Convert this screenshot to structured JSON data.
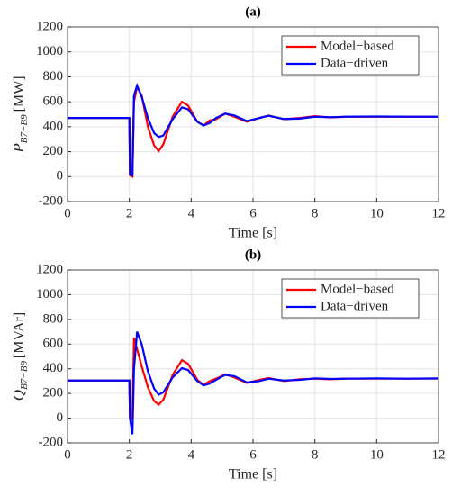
{
  "chart_data": [
    {
      "type": "line",
      "title": "(a)",
      "xlabel": "Time [s]",
      "ylabel": {
        "symbol": "P",
        "subscript": "B7−B9",
        "unit": "[MW]"
      },
      "x": [
        0,
        2,
        2.02,
        2.1,
        2.15,
        2.25,
        2.4,
        2.6,
        2.8,
        2.95,
        3.1,
        3.4,
        3.7,
        3.9,
        4.2,
        4.4,
        4.6,
        4.8,
        5.1,
        5.4,
        5.8,
        6.2,
        6.5,
        7,
        7.5,
        8,
        8.5,
        9,
        10,
        11,
        12
      ],
      "series": [
        {
          "name": "Model−based",
          "color": "#ff0000",
          "values": [
            470,
            470,
            10,
            0,
            600,
            720,
            650,
            400,
            250,
            205,
            260,
            480,
            600,
            570,
            440,
            410,
            450,
            460,
            505,
            480,
            440,
            470,
            490,
            460,
            470,
            485,
            475,
            480,
            480,
            480,
            480
          ]
        },
        {
          "name": "Data−driven",
          "color": "#0000ff",
          "values": [
            470,
            470,
            20,
            10,
            650,
            730,
            640,
            470,
            350,
            318,
            330,
            460,
            555,
            540,
            440,
            410,
            430,
            470,
            505,
            490,
            445,
            470,
            488,
            462,
            465,
            480,
            476,
            480,
            482,
            480,
            480
          ]
        }
      ],
      "xlim": [
        0,
        12
      ],
      "xticks": [
        0,
        2,
        4,
        6,
        8,
        10,
        12
      ],
      "ylim": [
        -200,
        1200
      ],
      "yticks": [
        -200,
        0,
        200,
        400,
        600,
        800,
        1000,
        1200
      ],
      "grid": true,
      "legend": "top-right"
    },
    {
      "type": "line",
      "title": "(b)",
      "xlabel": "Time [s]",
      "ylabel": {
        "symbol": "Q",
        "subscript": "B7−B9",
        "unit": "[MVAr]"
      },
      "x": [
        0,
        2,
        2.02,
        2.1,
        2.15,
        2.25,
        2.4,
        2.6,
        2.8,
        2.95,
        3.1,
        3.4,
        3.7,
        3.9,
        4.2,
        4.4,
        4.6,
        4.8,
        5.1,
        5.4,
        5.8,
        6.2,
        6.5,
        7,
        7.5,
        8,
        8.5,
        9,
        10,
        11,
        12
      ],
      "series": [
        {
          "name": "Model−based",
          "color": "#ff0000",
          "values": [
            305,
            305,
            0,
            -10,
            650,
            560,
            420,
            250,
            140,
            110,
            150,
            350,
            470,
            440,
            310,
            270,
            300,
            320,
            355,
            330,
            285,
            310,
            325,
            300,
            315,
            320,
            315,
            320,
            320,
            320,
            320
          ]
        },
        {
          "name": "Data−driven",
          "color": "#0000ff",
          "values": [
            305,
            305,
            0,
            -130,
            400,
            700,
            600,
            380,
            240,
            190,
            210,
            330,
            405,
            390,
            300,
            265,
            280,
            310,
            350,
            340,
            290,
            300,
            320,
            305,
            310,
            322,
            318,
            320,
            322,
            320,
            322
          ]
        }
      ],
      "xlim": [
        0,
        12
      ],
      "xticks": [
        0,
        2,
        4,
        6,
        8,
        10,
        12
      ],
      "ylim": [
        -200,
        1200
      ],
      "yticks": [
        -200,
        0,
        200,
        400,
        600,
        800,
        1000,
        1200
      ],
      "grid": true,
      "legend": "top-right"
    }
  ]
}
